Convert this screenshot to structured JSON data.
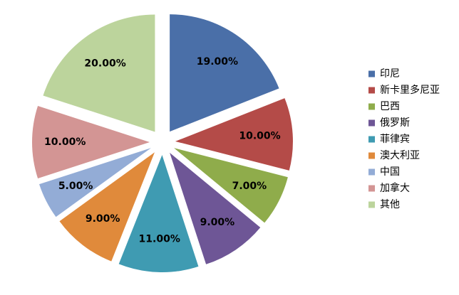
{
  "chart_data": {
    "type": "pie",
    "categories": [
      "印尼",
      "新卡里多尼亚",
      "巴西",
      "俄罗斯",
      "菲律宾",
      "澳大利亚",
      "中国",
      "加拿大",
      "其他"
    ],
    "values": [
      19,
      10,
      7,
      9,
      11,
      9,
      5,
      10,
      20
    ],
    "value_labels": [
      "19.00%",
      "10.00%",
      "7.00%",
      "9.00%",
      "11.00%",
      "9.00%",
      "5.00%",
      "10.00%",
      "20.00%"
    ],
    "colors": [
      "#4a6fa8",
      "#b44b48",
      "#8fac4b",
      "#6e5696",
      "#3f9bb2",
      "#e08a3b",
      "#93acd6",
      "#d39594",
      "#bcd49c"
    ],
    "legend": "right"
  }
}
